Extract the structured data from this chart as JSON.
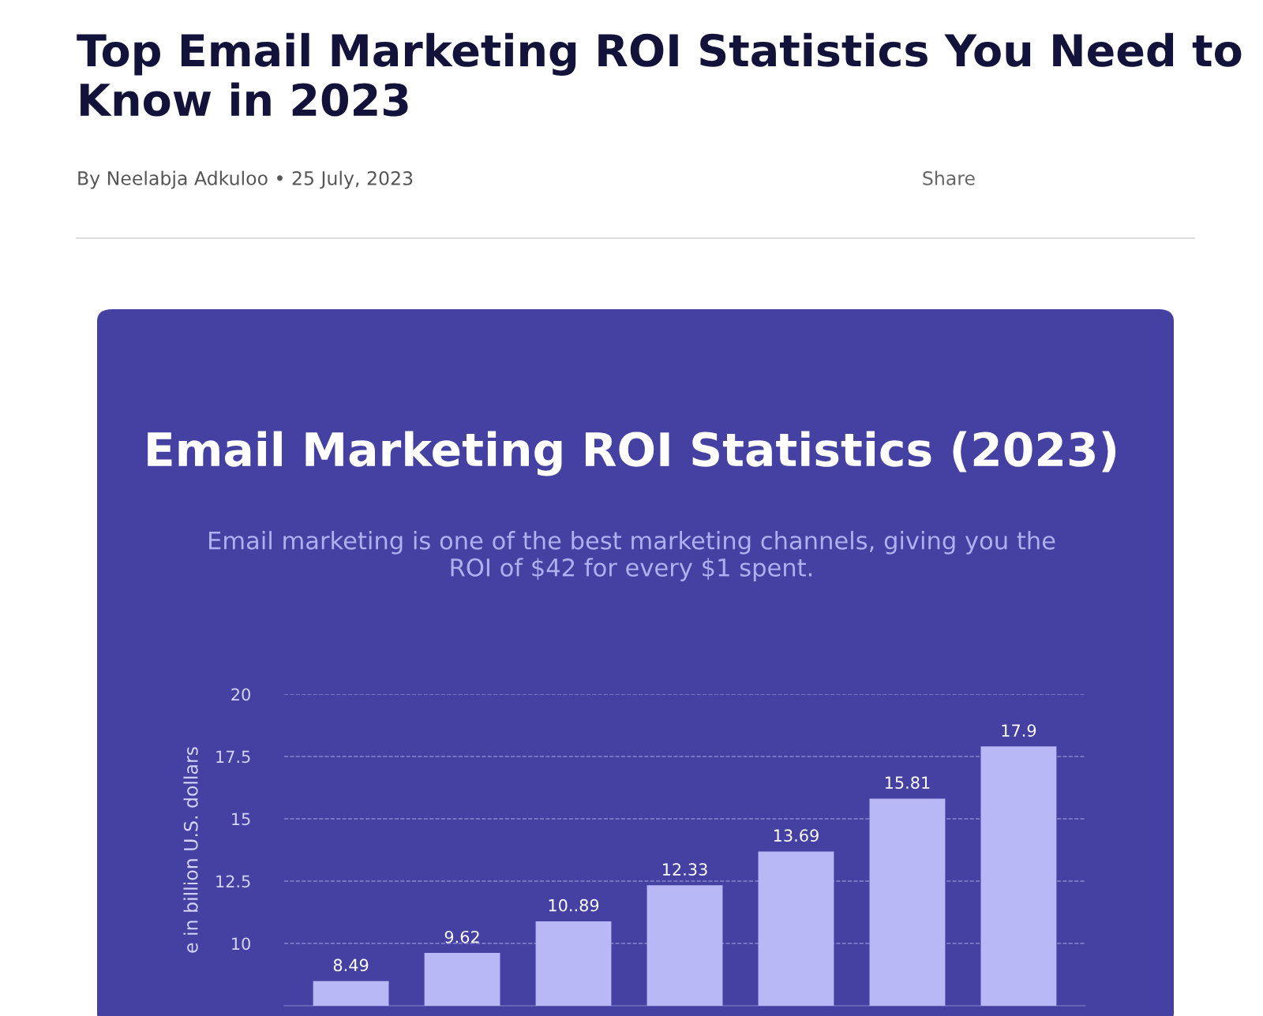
{
  "chart_data": {
    "type": "bar",
    "title": "Email Marketing ROI Statistics (2023)",
    "subtitle": "Email marketing is one of the best marketing channels, giving you the ROI of $42 for every $1 spent.",
    "ylabel": "e in billion U.S. dollars",
    "annotations": [
      "Top Email Marketing ROI Statistics You Need to Know in 2023",
      "By Neelabja Adkuloo • 25 July, 2023",
      "Share"
    ],
    "categories": [
      null,
      null,
      null,
      null,
      null,
      null,
      null
    ],
    "values": [
      8.49,
      9.62,
      10.89,
      12.33,
      13.69,
      15.81,
      17.9
    ],
    "value_labels": [
      "8.49",
      "9.62",
      "10..89",
      "12.33",
      "13.69",
      "15.81",
      "17.9"
    ],
    "color": "#b9b8f7",
    "ylim": [
      7.5,
      20
    ],
    "yticks": [
      10,
      12.5,
      15,
      17.5,
      20
    ],
    "grid": "y",
    "line_style": "dashed"
  }
}
